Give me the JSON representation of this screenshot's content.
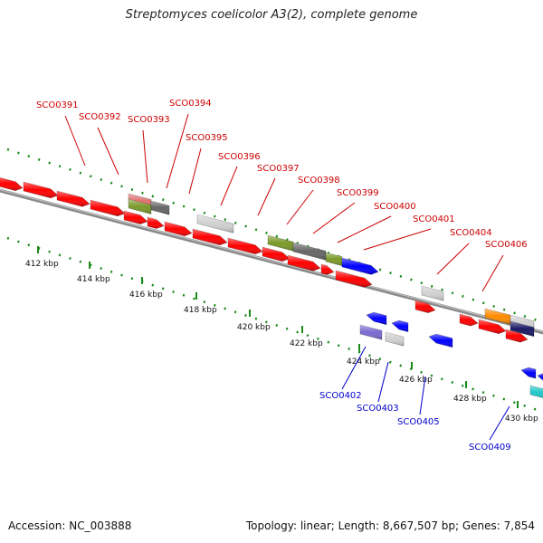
{
  "title": "Streptomyces coelicolor A3(2), complete genome",
  "footer": {
    "accession": "Accession: NC_003888",
    "summary": "Topology: linear; Length: 8,667,507 bp; Genes: 7,854"
  },
  "ticks": [
    "412 kbp",
    "414 kbp",
    "416 kbp",
    "418 kbp",
    "420 kbp",
    "422 kbp",
    "424 kbp",
    "426 kbp",
    "428 kbp",
    "430 kbp"
  ],
  "forward_genes": [
    "SCO0391",
    "SCO0392",
    "SCO0393",
    "SCO0394",
    "SCO0395",
    "SCO0396",
    "SCO0397",
    "SCO0398",
    "SCO0399",
    "SCO0400",
    "SCO0401",
    "SCO0404",
    "SCO0406"
  ],
  "reverse_genes": [
    "SCO0402",
    "SCO0403",
    "SCO0405",
    "SCO0409"
  ],
  "colors": {
    "forward_label": "#cc0000",
    "reverse_label": "#0000cc",
    "gene_red": "#ff0000",
    "gene_blue": "#0000ff",
    "gene_gray": "#d0d0d0",
    "gene_olive": "#7a9a2a",
    "gene_dark": "#666666",
    "gene_orange": "#ff8c00",
    "gene_navy": "#1a1a66",
    "gene_purple": "#7a6ad0",
    "gene_cyan": "#20c8c8",
    "gene_pink": "#e07070",
    "axis": "#8a8a8a",
    "tick": "#1a8a1a"
  }
}
